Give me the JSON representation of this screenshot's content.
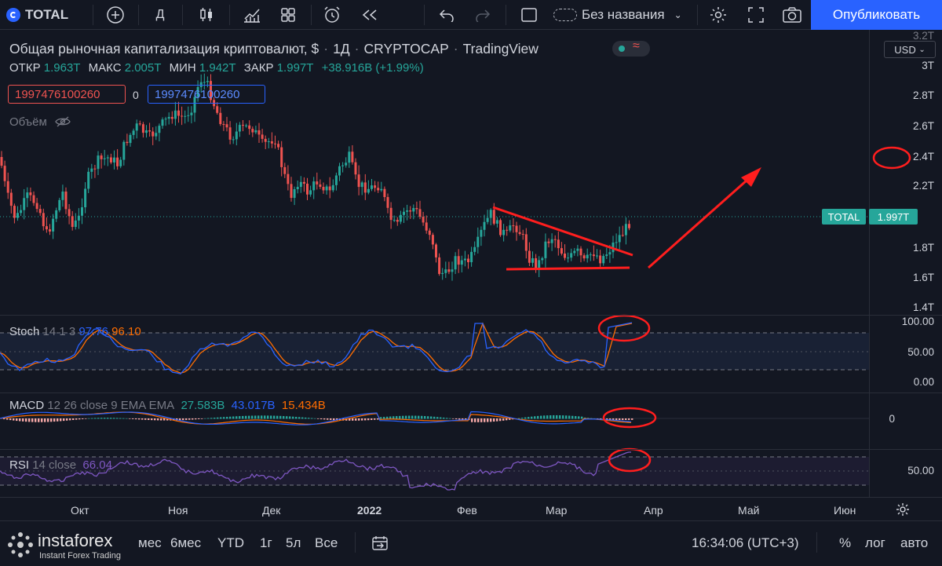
{
  "toolbar": {
    "symbol": "TOTAL",
    "interval": "Д",
    "layout_name": "Без названия",
    "publish_label": "Опубликовать"
  },
  "header": {
    "title": "Общая рыночная капитализация криптовалют, $",
    "interval": "1Д",
    "exchange": "CRYPTOCAP",
    "source": "TradingView",
    "currency": "USD"
  },
  "ohlc": {
    "open_label": "ОТКР",
    "open": "1.963T",
    "high_label": "МАКС",
    "high": "2.005T",
    "low_label": "МИН",
    "low": "1.942T",
    "close_label": "ЗАКР",
    "close": "1.997T",
    "change": "+38.916B (+1.99%)"
  },
  "order_boxes": {
    "sell": "1997476100260",
    "spread": "0",
    "buy": "1997476100260"
  },
  "volume_label": "Объём",
  "price_axis": {
    "labels": [
      "3.2T",
      "3T",
      "2.8T",
      "2.6T",
      "2.4T",
      "2.2T",
      "1.8T",
      "1.6T",
      "1.4T"
    ],
    "total_tag": "TOTAL",
    "last_price": "1.997T"
  },
  "stoch": {
    "name": "Stoch",
    "params": "14 1 3",
    "k": "97.76",
    "d": "96.10",
    "axis": [
      "100.00",
      "50.00",
      "0.00"
    ]
  },
  "macd": {
    "name": "MACD",
    "params": "12 26 close 9 EMA EMA",
    "v1": "27.583B",
    "v2": "43.017B",
    "v3": "15.434B",
    "axis": [
      "0"
    ]
  },
  "rsi": {
    "name": "RSI",
    "params": "14 close",
    "value": "66.04",
    "axis": [
      "50.00"
    ]
  },
  "time_axis": [
    "Окт",
    "Ноя",
    "Дек",
    "2022",
    "Фев",
    "Мар",
    "Апр",
    "Май",
    "Июн"
  ],
  "bottom": {
    "ranges": [
      "6мес",
      "YTD",
      "1г",
      "5л",
      "Все"
    ],
    "range_partial": "мес",
    "clock": "16:34:06 (UTC+3)",
    "percent": "%",
    "log": "лог",
    "auto": "авто"
  },
  "watermark": {
    "brand": "instaforex",
    "tagline": "Instant Forex Trading"
  },
  "colors": {
    "bg": "#131722",
    "up": "#26a69a",
    "down": "#ef5350",
    "accent": "#2962ff",
    "stoch_k": "#2962ff",
    "stoch_d": "#ff6d00",
    "rsi": "#7e57c2",
    "annotation": "#ff1e1e"
  }
}
